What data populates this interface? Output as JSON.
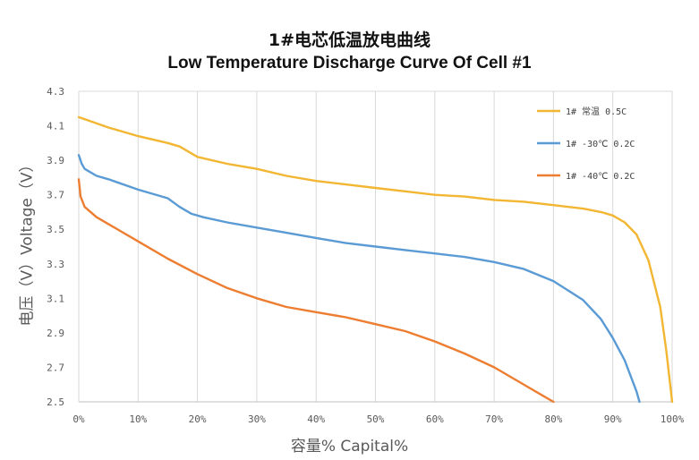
{
  "chart_data": {
    "type": "line",
    "title": "1#电芯低温放电曲线",
    "subtitle": "Low Temperature Discharge Curve Of  Cell #1",
    "xlabel": "容量% Capital%",
    "ylabel": "电压（V）Voltage（V）",
    "xlim": [
      0,
      100
    ],
    "ylim": [
      2.5,
      4.3
    ],
    "x_ticks": [
      "0%",
      "10%",
      "20%",
      "30%",
      "40%",
      "50%",
      "60%",
      "70%",
      "80%",
      "90%",
      "100%"
    ],
    "y_ticks": [
      "2.5",
      "2.7",
      "2.9",
      "3.1",
      "3.3",
      "3.5",
      "3.7",
      "3.9",
      "4.1",
      "4.3"
    ],
    "grid": "vertical",
    "legend": "top-right",
    "series": [
      {
        "name": "1# 常温 0.5C",
        "color": "#F2B632",
        "x": [
          0,
          5,
          10,
          15,
          17,
          20,
          25,
          30,
          35,
          40,
          45,
          50,
          55,
          60,
          65,
          70,
          75,
          80,
          85,
          88,
          90,
          92,
          94,
          96,
          98,
          99,
          99.5,
          100
        ],
        "y": [
          4.15,
          4.09,
          4.04,
          4.0,
          3.98,
          3.92,
          3.88,
          3.85,
          3.81,
          3.78,
          3.76,
          3.74,
          3.72,
          3.7,
          3.69,
          3.67,
          3.66,
          3.64,
          3.62,
          3.6,
          3.58,
          3.54,
          3.47,
          3.32,
          3.05,
          2.8,
          2.65,
          2.5
        ]
      },
      {
        "name": "1# -30℃ 0.2C",
        "color": "#5B9BD5",
        "x": [
          0,
          0.5,
          1,
          3,
          5,
          10,
          15,
          17,
          19,
          21,
          25,
          30,
          35,
          40,
          45,
          50,
          55,
          60,
          65,
          70,
          75,
          80,
          85,
          88,
          90,
          92,
          93,
          94,
          94.5
        ],
        "y": [
          3.93,
          3.88,
          3.85,
          3.81,
          3.79,
          3.73,
          3.68,
          3.63,
          3.59,
          3.57,
          3.54,
          3.51,
          3.48,
          3.45,
          3.42,
          3.4,
          3.38,
          3.36,
          3.34,
          3.31,
          3.27,
          3.2,
          3.09,
          2.98,
          2.87,
          2.74,
          2.65,
          2.56,
          2.5
        ]
      },
      {
        "name": "1#  -40℃ 0.2C",
        "color": "#ED7D31",
        "x": [
          0,
          0.3,
          1,
          3,
          5,
          10,
          15,
          20,
          25,
          30,
          35,
          40,
          45,
          50,
          55,
          60,
          65,
          70,
          73,
          76,
          78,
          80
        ],
        "y": [
          3.79,
          3.69,
          3.63,
          3.57,
          3.53,
          3.43,
          3.33,
          3.24,
          3.16,
          3.1,
          3.05,
          3.02,
          2.99,
          2.95,
          2.91,
          2.85,
          2.78,
          2.7,
          2.64,
          2.58,
          2.54,
          2.5
        ]
      }
    ]
  }
}
